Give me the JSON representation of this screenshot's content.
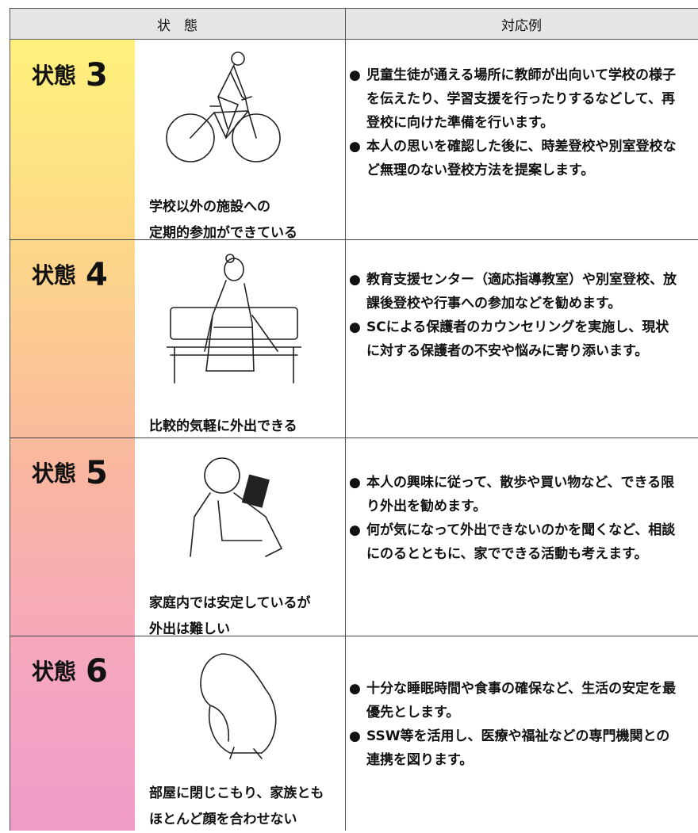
{
  "header": [
    "状　態",
    "対応例"
  ],
  "rows": [
    {
      "label": "状態",
      "number": "3",
      "caption": [
        "学校以外の施設への",
        "定期的参加ができている"
      ],
      "bullets": [
        "児童生徒が通える場所に教師が出向いて学校の様子を伝えたり、学習支援を行ったりするなどして、再登校に向けた準備を行います。",
        "本人の思いを確認した後に、時差登校や別室登校など無理のない登校方法を提案します。"
      ]
    },
    {
      "label": "状態",
      "number": "4",
      "caption": [
        "比較的気軽に外出できる"
      ],
      "bullets": [
        "教育支援センター（適応指導教室）や別室登校、放課後登校や行事への参加などを勧めます。",
        "SCによる保護者のカウンセリングを実施し、現状に対する保護者の不安や悩みに寄り添います。"
      ]
    },
    {
      "label": "状態",
      "number": "5",
      "caption": [
        "家庭内では安定しているが",
        "外出は難しい"
      ],
      "bullets": [
        "本人の興味に従って、散歩や買い物など、できる限り外出を勧めます。",
        "何が気になって外出できないのかを聞くなど、相談にのるとともに、家でできる活動も考えます。"
      ]
    },
    {
      "label": "状態",
      "number": "6",
      "caption": [
        "部屋に閉じこもり、家族とも",
        "ほとんど顔を合わせない"
      ],
      "bullets": [
        "十分な睡眠時間や食事の確保など、生活の安定を最優先とします。",
        "SSW等を活用し、医療や福祉などの専門機関との連携を図ります。"
      ]
    }
  ]
}
